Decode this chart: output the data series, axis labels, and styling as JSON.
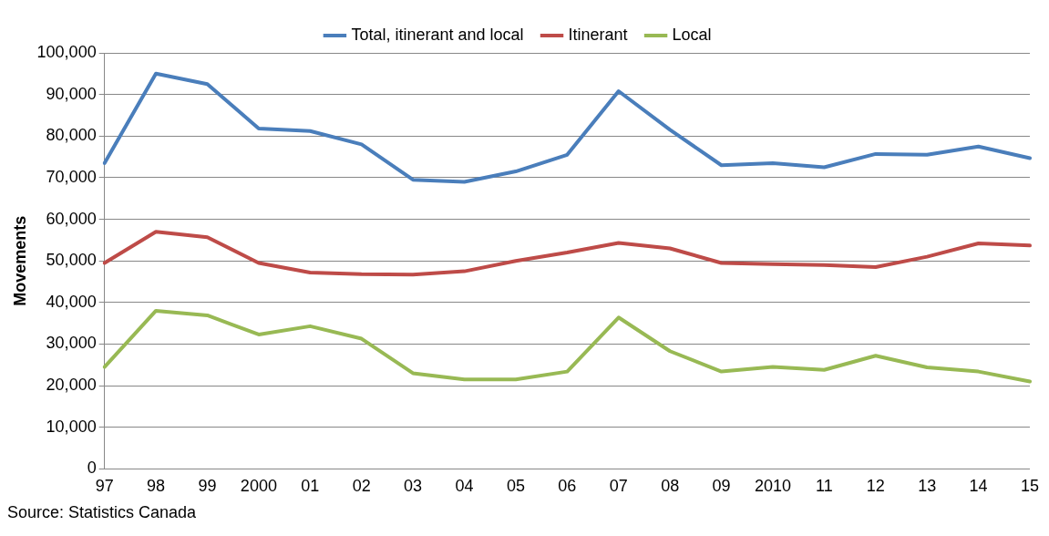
{
  "chart_data": {
    "type": "line",
    "ylabel": "Movements",
    "categories": [
      "97",
      "98",
      "99",
      "2000",
      "01",
      "02",
      "03",
      "04",
      "05",
      "06",
      "07",
      "08",
      "09",
      "2010",
      "11",
      "12",
      "13",
      "14",
      "15"
    ],
    "series": [
      {
        "name": "Total, itinerant and local",
        "color": "#4a7ebb",
        "values": [
          73500,
          95000,
          92500,
          81800,
          81200,
          78000,
          69500,
          69000,
          71500,
          75500,
          90800,
          81500,
          73000,
          73500,
          72500,
          75700,
          75500,
          77500,
          74700
        ]
      },
      {
        "name": "Itinerant",
        "color": "#be4b48",
        "values": [
          49500,
          57000,
          55700,
          49500,
          47200,
          46800,
          46700,
          47500,
          50000,
          52000,
          54300,
          53000,
          49500,
          49200,
          49000,
          48500,
          51000,
          54200,
          53700
        ]
      },
      {
        "name": "Local",
        "color": "#98b954",
        "values": [
          24500,
          38000,
          36900,
          32300,
          34300,
          31300,
          23000,
          21500,
          21500,
          23400,
          36400,
          28300,
          23400,
          24500,
          23800,
          27200,
          24400,
          23400,
          21000
        ]
      }
    ],
    "ylim": [
      0,
      100000
    ],
    "yticks": [
      0,
      {
        "value": 10000,
        "label": "10,000"
      },
      {
        "value": 20000,
        "label": "20,000"
      },
      {
        "value": 30000,
        "label": "30,000"
      },
      {
        "value": 40000,
        "label": "40,000"
      },
      {
        "value": 50000,
        "label": "50,000"
      },
      {
        "value": 60000,
        "label": "60,000"
      },
      {
        "value": 70000,
        "label": "70,000"
      },
      {
        "value": 80000,
        "label": "80,000"
      },
      {
        "value": 90000,
        "label": "90,000"
      },
      {
        "value": 100000,
        "label": "100,000"
      }
    ],
    "grid": "y",
    "legend": "top",
    "marker": "none",
    "line_style": "solid",
    "annotations": [
      "Source: Statistics Canada"
    ]
  }
}
